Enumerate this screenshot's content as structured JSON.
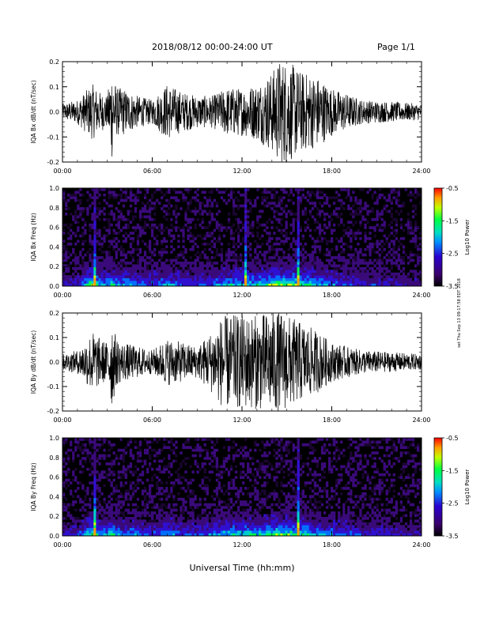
{
  "header": {
    "title": "2018/08/12  00:00-24:00 UT",
    "page": "Page 1/1"
  },
  "footer": {
    "xlabel": "Universal Time (hh:mm)"
  },
  "side_note": "set Thu Sep 13 09:17:58 EDT 2018",
  "colors": {
    "trace": "#000000",
    "spectrogram_background": "#000000"
  },
  "chart_data": [
    {
      "type": "line",
      "ylabel": "IQA Bx dB/dt (nT/sec)",
      "xlabel": "",
      "ylim": [
        -0.2,
        0.2
      ],
      "yticks": [
        -0.2,
        -0.1,
        0.0,
        0.1,
        0.2
      ],
      "yticklabels": [
        "-0.2",
        "-0.1",
        "0.0",
        "0.1",
        "0.2"
      ],
      "xticks": [
        0,
        6,
        12,
        18,
        24
      ],
      "xticklabels": [
        "00:00",
        "06:00",
        "12:00",
        "18:00",
        "24:00"
      ],
      "xlim": [
        0,
        24
      ],
      "x_unit": "hours UT",
      "series": [
        {
          "values": [
            0.02,
            0.03,
            0.05,
            0.07,
            0.05,
            0.04,
            0.12,
            0.06,
            0.06,
            0.04,
            0.03,
            0.07,
            0.05,
            0.04,
            0.04,
            0.05,
            0.06,
            0.06,
            0.07,
            0.1,
            0.13,
            0.13,
            0.1,
            0.09,
            0.06,
            0.03,
            0.02
          ]
        }
      ],
      "sample_hours": [
        0,
        1,
        1.5,
        2,
        2.5,
        3,
        3.3,
        3.6,
        4,
        5,
        6,
        7,
        8,
        9,
        10,
        10.5,
        11,
        12,
        13,
        14,
        14.5,
        15,
        16,
        17,
        18,
        20,
        24
      ],
      "grid": false
    },
    {
      "type": "heatmap",
      "ylabel": "IQA Bx Freq (Hz)",
      "ylim": [
        0.0,
        1.0
      ],
      "yticks": [
        0.0,
        0.2,
        0.4,
        0.6,
        0.8,
        1.0
      ],
      "yticklabels": [
        "0.0",
        "0.2",
        "0.4",
        "0.6",
        "0.8",
        "1.0"
      ],
      "xticks": [
        0,
        6,
        12,
        18,
        24
      ],
      "xticklabels": [
        "00:00",
        "06:00",
        "12:00",
        "18:00",
        "24:00"
      ],
      "xlim": [
        0,
        24
      ],
      "colorbar": {
        "label": "Log10 Power",
        "range": [
          -3.5,
          -0.5
        ],
        "ticks": [
          -0.5,
          -1.5,
          -2.5,
          -3.5
        ],
        "ticklabels": [
          "-0.5",
          "-1.5",
          "-2.5",
          "-3.5"
        ]
      },
      "activity_hours": [
        0,
        1,
        1.5,
        2,
        2.5,
        3,
        3.3,
        3.6,
        4,
        5,
        6,
        7,
        8,
        9,
        10,
        10.5,
        11,
        12,
        13,
        14,
        14.5,
        15,
        16,
        17,
        18,
        20,
        24
      ],
      "activity": [
        0.25,
        0.3,
        0.5,
        0.8,
        0.6,
        0.5,
        0.7,
        0.55,
        0.5,
        0.45,
        0.35,
        0.5,
        0.4,
        0.35,
        0.4,
        0.5,
        0.55,
        0.55,
        0.6,
        0.75,
        0.85,
        0.8,
        0.7,
        0.6,
        0.45,
        0.3,
        0.2
      ],
      "spike_hours": [
        2.2,
        12.3,
        15.8
      ]
    },
    {
      "type": "line",
      "ylabel": "IQA By dB/dt (nT/sec)",
      "ylim": [
        -0.2,
        0.2
      ],
      "yticks": [
        -0.2,
        -0.1,
        0.0,
        0.1,
        0.2
      ],
      "yticklabels": [
        "-0.2",
        "-0.1",
        "0.0",
        "0.1",
        "0.2"
      ],
      "xticks": [
        0,
        6,
        12,
        18,
        24
      ],
      "xticklabels": [
        "00:00",
        "06:00",
        "12:00",
        "18:00",
        "24:00"
      ],
      "xlim": [
        0,
        24
      ],
      "series": [
        {
          "values": [
            0.02,
            0.03,
            0.05,
            0.08,
            0.06,
            0.05,
            0.12,
            0.06,
            0.05,
            0.04,
            0.03,
            0.06,
            0.05,
            0.04,
            0.08,
            0.11,
            0.12,
            0.12,
            0.12,
            0.13,
            0.13,
            0.12,
            0.1,
            0.08,
            0.05,
            0.03,
            0.02
          ]
        }
      ],
      "sample_hours": [
        0,
        1,
        1.5,
        2,
        2.5,
        3,
        3.3,
        3.6,
        4,
        5,
        6,
        7,
        8,
        9,
        10,
        10.5,
        11,
        12,
        13,
        14,
        14.5,
        15,
        16,
        17,
        18,
        20,
        24
      ],
      "grid": false
    },
    {
      "type": "heatmap",
      "ylabel": "IQA By Freq (Hz)",
      "ylim": [
        0.0,
        1.0
      ],
      "yticks": [
        0.0,
        0.2,
        0.4,
        0.6,
        0.8,
        1.0
      ],
      "yticklabels": [
        "0.0",
        "0.2",
        "0.4",
        "0.6",
        "0.8",
        "1.0"
      ],
      "xticks": [
        0,
        6,
        12,
        18,
        24
      ],
      "xticklabels": [
        "00:00",
        "06:00",
        "12:00",
        "18:00",
        "24:00"
      ],
      "xlim": [
        0,
        24
      ],
      "colorbar": {
        "label": "Log10 Power",
        "range": [
          -3.5,
          -0.5
        ],
        "ticks": [
          -0.5,
          -1.5,
          -2.5,
          -3.5
        ],
        "ticklabels": [
          "-0.5",
          "-1.5",
          "-2.5",
          "-3.5"
        ]
      },
      "activity_hours": [
        0,
        1,
        1.5,
        2,
        2.5,
        3,
        3.3,
        3.6,
        4,
        5,
        6,
        7,
        8,
        9,
        10,
        10.5,
        11,
        12,
        13,
        14,
        14.5,
        15,
        16,
        17,
        18,
        20,
        24
      ],
      "activity": [
        0.25,
        0.3,
        0.5,
        0.8,
        0.6,
        0.5,
        0.7,
        0.55,
        0.5,
        0.45,
        0.35,
        0.5,
        0.4,
        0.35,
        0.45,
        0.55,
        0.6,
        0.6,
        0.6,
        0.7,
        0.8,
        0.75,
        0.65,
        0.55,
        0.45,
        0.3,
        0.2
      ],
      "spike_hours": [
        2.2,
        15.8
      ]
    }
  ]
}
